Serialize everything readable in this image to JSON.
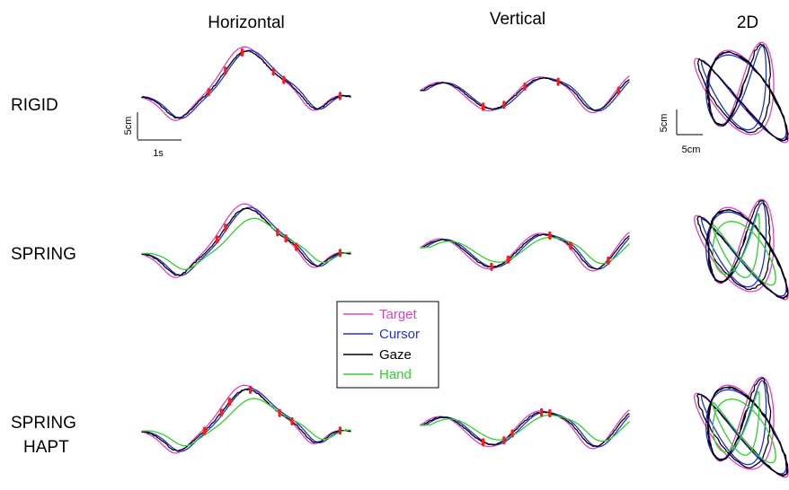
{
  "chart_data": {
    "type": "line",
    "columns": [
      "Horizontal",
      "Vertical",
      "2D"
    ],
    "rows": [
      {
        "label_lines": [
          "RIGID"
        ],
        "has_hand": false
      },
      {
        "label_lines": [
          "SPRING"
        ],
        "has_hand": true
      },
      {
        "label_lines": [
          "SPRING",
          "HAPT"
        ],
        "has_hand": true
      }
    ],
    "legend": [
      {
        "name": "Target",
        "color": "#e040c8"
      },
      {
        "name": "Cursor",
        "color": "#2030d8"
      },
      {
        "name": "Gaze",
        "color": "#000000"
      },
      {
        "name": "Hand",
        "color": "#30d030"
      }
    ],
    "marker_color": "#ff1a1a",
    "scale_bars": {
      "time_label": "1s",
      "amplitude_label": "5cm",
      "twod_vertical_label": "5cm",
      "twod_horizontal_label": "5cm"
    }
  }
}
